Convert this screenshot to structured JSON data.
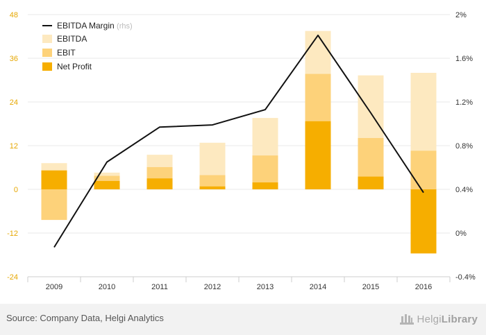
{
  "chart_data": {
    "type": "bar",
    "categories": [
      "2009",
      "2010",
      "2011",
      "2012",
      "2013",
      "2014",
      "2015",
      "2016"
    ],
    "series": [
      {
        "name": "EBITDA",
        "type": "bar",
        "axis": "left",
        "color": "#fde9c0",
        "values": [
          7.2,
          4.6,
          9.5,
          12.8,
          19.6,
          43.5,
          31.3,
          32.0
        ]
      },
      {
        "name": "EBIT",
        "type": "bar",
        "axis": "left",
        "color": "#fdd27a",
        "values": [
          -8.4,
          3.7,
          6.1,
          3.9,
          9.3,
          31.7,
          14.1,
          10.6
        ]
      },
      {
        "name": "Net Profit",
        "type": "bar",
        "axis": "left",
        "color": "#f6ae00",
        "values": [
          5.2,
          2.3,
          3.0,
          0.8,
          1.9,
          18.7,
          3.5,
          -17.6
        ]
      },
      {
        "name": "EBITDA Margin",
        "name_suffix": "(rhs)",
        "type": "line",
        "axis": "right",
        "color": "#111111",
        "values": [
          -0.13,
          0.65,
          0.97,
          0.99,
          1.13,
          1.81,
          1.1,
          0.37
        ]
      }
    ],
    "left_axis": {
      "ticks": [
        "48",
        "36",
        "24",
        "12",
        "0",
        "-12",
        "-24"
      ],
      "values": [
        48,
        36,
        24,
        12,
        0,
        -12,
        -24
      ],
      "ylim": [
        -24,
        48
      ]
    },
    "right_axis": {
      "ticks": [
        "2%",
        "1.6%",
        "1.2%",
        "0.8%",
        "0.4%",
        "0%",
        "-0.4%"
      ],
      "values": [
        2.0,
        1.6,
        1.2,
        0.8,
        0.4,
        0.0,
        -0.4
      ],
      "ylim": [
        -0.4,
        2.0
      ]
    },
    "legend_position": "top-left",
    "grid": true
  },
  "footer": {
    "source": "Source: Company Data, Helgi Analytics",
    "brand_light": "Helgi",
    "brand_bold": "Library"
  },
  "colors": {
    "axis_tick_left": "#e6a700",
    "axis_tick_right": "#333333",
    "gridline": "#e8e8e8",
    "footer_bg": "#f2f2f2"
  }
}
